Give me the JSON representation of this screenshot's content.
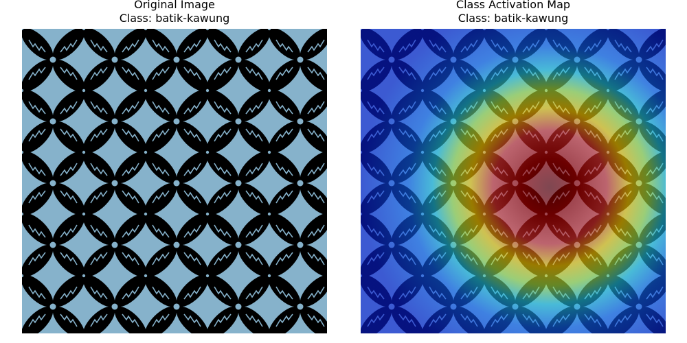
{
  "left_panel": {
    "title": "Original Image",
    "class_label": "Class: batik-kawung"
  },
  "right_panel": {
    "title": "Class Activation Map",
    "class_label": "Class: batik-kawung"
  },
  "colors": {
    "batik_background": "#86b2cb",
    "batik_motif": "#000000",
    "cam_low": "#0a1fd6",
    "cam_mid": "#ffff00",
    "cam_high": "#b30000"
  }
}
